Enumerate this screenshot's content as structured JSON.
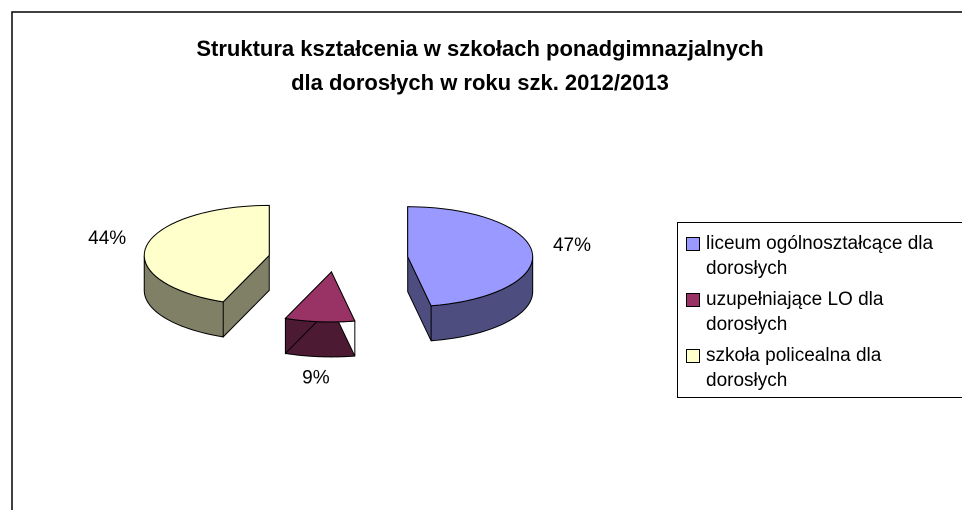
{
  "chart_data": {
    "type": "pie",
    "title": [
      "Struktura kształcenia w szkołach ponadgimnazjalnych",
      "dla dorosłych w roku szk. 2012/2013"
    ],
    "categories": [
      "liceum ogólnoształcące dla dorosłych",
      "uzupełniające LO dla dorosłych",
      "szkoła policealna dla dorosłych"
    ],
    "values": [
      47,
      9,
      44
    ],
    "value_labels": [
      "47%",
      "9%",
      "44%"
    ],
    "colors": [
      "#9999ff",
      "#993366",
      "#ffffcc"
    ],
    "legend": "right"
  }
}
